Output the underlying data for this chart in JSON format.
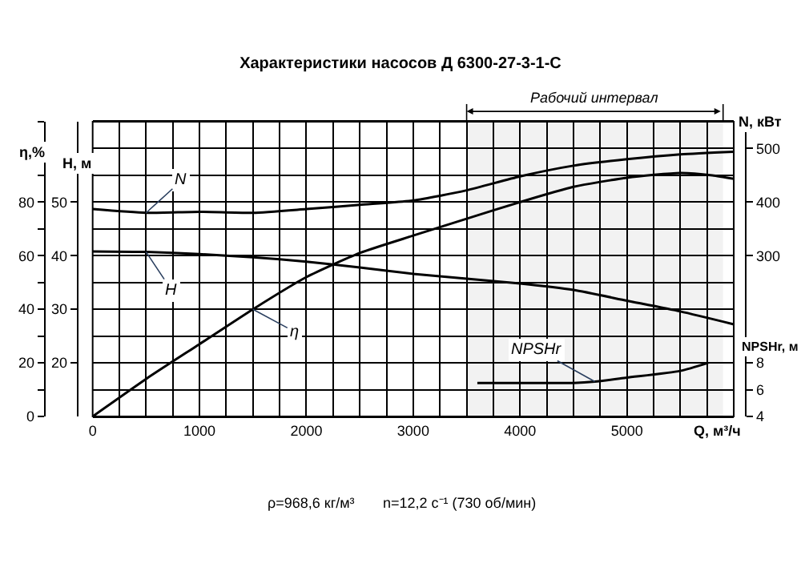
{
  "chart_data": [
    {
      "type": "line",
      "title": "Характеристики насосов Д 6300-27-3-1-С",
      "xlabel": "Q, м³/ч",
      "ylabel": "η,%",
      "y2label": "H, м",
      "y3label": "N, кВт",
      "xlim": [
        0,
        6000
      ],
      "xticks": [
        0,
        {
          "value": 250,
          "label": null
        },
        {
          "value": 500,
          "label": null
        },
        {
          "value": 750,
          "label": null
        },
        1000,
        {
          "value": 1250,
          "label": null
        },
        {
          "value": 1500,
          "label": null
        },
        {
          "value": 1750,
          "label": null
        },
        2000,
        {
          "value": 2250,
          "label": null
        },
        {
          "value": 2500,
          "label": null
        },
        {
          "value": 2750,
          "label": null
        },
        3000,
        {
          "value": 3250,
          "label": null
        },
        {
          "value": 3500,
          "label": null
        },
        {
          "value": 3750,
          "label": null
        },
        4000,
        {
          "value": 4250,
          "label": null
        },
        {
          "value": 4500,
          "label": null
        },
        {
          "value": 4750,
          "label": null
        },
        5000,
        {
          "value": 5250,
          "label": null
        },
        {
          "value": 5500,
          "label": null
        },
        {
          "value": 5750,
          "label": null
        },
        {
          "value": 6000,
          "label": null
        }
      ],
      "ylim": [
        0,
        110
      ],
      "yticks": [
        0,
        {
          "value": 10,
          "label": null
        },
        20,
        {
          "value": 30,
          "label": null
        },
        40,
        {
          "value": 50,
          "label": null
        },
        60,
        {
          "value": 70,
          "label": null
        },
        80,
        {
          "value": 90,
          "label": null
        },
        {
          "value": 100,
          "label": null
        },
        {
          "value": 110,
          "label": null
        }
      ],
      "y2lim": [
        10,
        65
      ],
      "y2ticks": [
        20,
        30,
        40,
        50
      ],
      "y3lim": [
        0,
        550
      ],
      "y3ticks": [
        300,
        400,
        500
      ],
      "grid": true,
      "marker": "none",
      "line_style": "solid",
      "series": [
        {
          "name": "H",
          "color": "#000000",
          "axis": "y2",
          "x": [
            0,
            500,
            1000,
            1500,
            2000,
            2500,
            3000,
            3500,
            4000,
            4500,
            5000,
            5500,
            6000
          ],
          "values": [
            40.8,
            40.7,
            40.3,
            39.7,
            38.9,
            37.8,
            36.6,
            35.7,
            34.8,
            33.6,
            31.6,
            29.6,
            27.2
          ]
        },
        {
          "name": "N",
          "color": "#000000",
          "axis": "y3",
          "x": [
            0,
            500,
            1000,
            1500,
            2000,
            2500,
            3000,
            3500,
            4000,
            4500,
            5000,
            5500,
            6000
          ],
          "values": [
            387,
            380,
            382,
            380,
            387,
            395,
            403,
            422,
            448,
            468,
            480,
            489,
            494
          ]
        },
        {
          "name": "η",
          "color": "#000000",
          "x": [
            0,
            500,
            1000,
            1500,
            2000,
            2500,
            3000,
            3500,
            4000,
            4500,
            5000,
            5500,
            5800,
            6000
          ],
          "values": [
            0,
            14,
            27,
            40,
            52,
            61,
            67.5,
            73.8,
            80,
            85.7,
            89.1,
            90.9,
            90,
            88.7
          ]
        }
      ],
      "bands": [
        {
          "axis": "x",
          "from": 3500,
          "to": 5900,
          "label": "Рабочий интервал"
        }
      ],
      "annotations": [
        "ρ=968,6 кг/м³",
        "n=12,2 с⁻¹ (730 об/мин)"
      ]
    },
    {
      "type": "line",
      "ylabel": "NPSHr, м",
      "xlim": [
        0,
        6000
      ],
      "ylim": [
        4,
        26
      ],
      "yticks": [
        4,
        6,
        8
      ],
      "tick_labels": "y",
      "marker": "none",
      "line_style": "solid",
      "series": [
        {
          "name": "NPSHr",
          "color": "#000000",
          "x": [
            3600,
            4000,
            4500,
            4700,
            5000,
            5500,
            5760
          ],
          "values": [
            6.5,
            6.5,
            6.5,
            6.6,
            6.9,
            7.4,
            8.0
          ]
        }
      ]
    }
  ]
}
